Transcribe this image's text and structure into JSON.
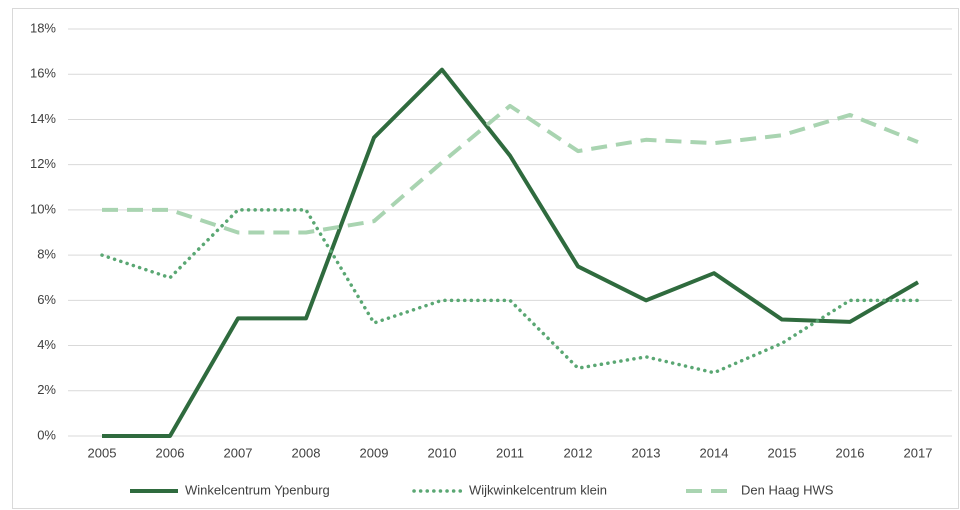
{
  "chart_data": {
    "type": "line",
    "categories": [
      "2005",
      "2006",
      "2007",
      "2008",
      "2009",
      "2010",
      "2011",
      "2012",
      "2013",
      "2014",
      "2015",
      "2016",
      "2017"
    ],
    "series": [
      {
        "name": "Winkelcentrum Ypenburg",
        "color": "#2f6b3e",
        "style": "solid",
        "values": [
          0,
          0,
          5.2,
          5.2,
          13.2,
          16.2,
          12.4,
          7.5,
          6.0,
          7.2,
          5.15,
          5.05,
          6.8
        ]
      },
      {
        "name": "Wijkwinkelcentrum klein",
        "color": "#5aa773",
        "style": "dotted",
        "values": [
          8,
          7,
          10,
          10,
          5,
          6,
          6,
          3,
          3.5,
          2.8,
          4.1,
          6,
          6
        ]
      },
      {
        "name": "Den Haag HWS",
        "color": "#a9d4b1",
        "style": "dashed",
        "values": [
          10,
          10,
          9,
          9,
          9.5,
          12.1,
          14.6,
          12.6,
          13.1,
          12.95,
          13.3,
          14.2,
          13
        ]
      }
    ],
    "ylim": [
      0,
      18
    ],
    "yticks": [
      {
        "value": 0,
        "label": "0%"
      },
      {
        "value": 2,
        "label": "2%"
      },
      {
        "value": 4,
        "label": "4%"
      },
      {
        "value": 6,
        "label": "6%"
      },
      {
        "value": 8,
        "label": "8%"
      },
      {
        "value": 10,
        "label": "10%"
      },
      {
        "value": 12,
        "label": "12%"
      },
      {
        "value": 14,
        "label": "14%"
      },
      {
        "value": 16,
        "label": "16%"
      },
      {
        "value": 18,
        "label": "18%"
      }
    ],
    "grid": true,
    "legend": "bottom"
  }
}
